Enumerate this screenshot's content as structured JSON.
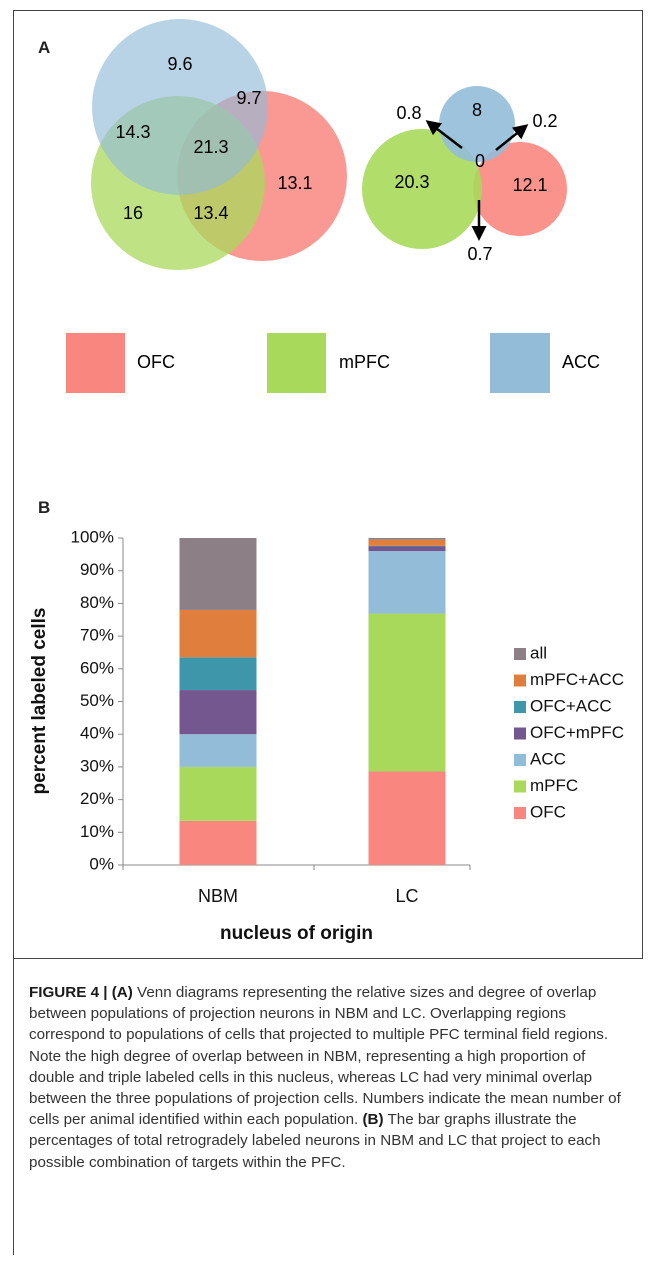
{
  "panel_a": {
    "label": "A",
    "nbm_venn": {
      "acc_only": "9.6",
      "acc_ofc": "9.7",
      "mpfc_acc": "14.3",
      "all": "21.3",
      "ofc_only": "13.1",
      "mpfc_only": "16",
      "mpfc_ofc": "13.4"
    },
    "lc_venn": {
      "acc_only": "8",
      "mpfc_acc": "0.8",
      "acc_ofc": "0.2",
      "all": "0",
      "mpfc_only": "20.3",
      "ofc_only": "12.1",
      "mpfc_ofc": "0.7"
    },
    "legend": [
      {
        "label": "OFC",
        "color": "#f98780"
      },
      {
        "label": "mPFC",
        "color": "#a9d95b"
      },
      {
        "label": "ACC",
        "color": "#93bcd9"
      }
    ]
  },
  "panel_b": {
    "label": "B"
  },
  "chart_data": {
    "type": "bar",
    "stacked": true,
    "categories": [
      "NBM",
      "LC"
    ],
    "xlabel": "nucleus of origin",
    "ylabel": "percent labeled cells",
    "ylim": [
      0,
      100
    ],
    "yticks": [
      "0%",
      "10%",
      "20%",
      "30%",
      "40%",
      "50%",
      "60%",
      "70%",
      "80%",
      "90%",
      "100%"
    ],
    "series": [
      {
        "name": "OFC",
        "color": "#f98780",
        "values": [
          13.5,
          28.6
        ]
      },
      {
        "name": "mPFC",
        "color": "#a9d95b",
        "values": [
          16.5,
          48.3
        ]
      },
      {
        "name": "ACC",
        "color": "#93bcd9",
        "values": [
          10,
          19.1
        ]
      },
      {
        "name": "OFC+mPFC",
        "color": "#75578f",
        "values": [
          13.5,
          1.4
        ]
      },
      {
        "name": "OFC+ACC",
        "color": "#3e96ab",
        "values": [
          10,
          0.2
        ]
      },
      {
        "name": "mPFC+ACC",
        "color": "#e07f3d",
        "values": [
          14.5,
          1.9
        ]
      },
      {
        "name": "all",
        "color": "#8c7f86",
        "values": [
          22,
          0.5
        ]
      }
    ]
  },
  "caption": {
    "lead": "FIGURE 4 | (A)",
    "text_a": " Venn diagrams representing the relative sizes and degree of overlap between populations of projection neurons in NBM and LC. Overlapping regions correspond to populations of cells that projected to multiple PFC terminal field regions. Note the high degree of overlap between in NBM, representing a high proportion of double and triple labeled cells in this nucleus, whereas LC had very minimal overlap between the three populations of projection cells. Numbers indicate the mean number of cells per animal identified within each population. ",
    "b_label": "(B)",
    "text_b": " The bar graphs illustrate the percentages of total retrogradely labeled neurons in NBM and LC that project to each possible combination of targets within the PFC."
  }
}
